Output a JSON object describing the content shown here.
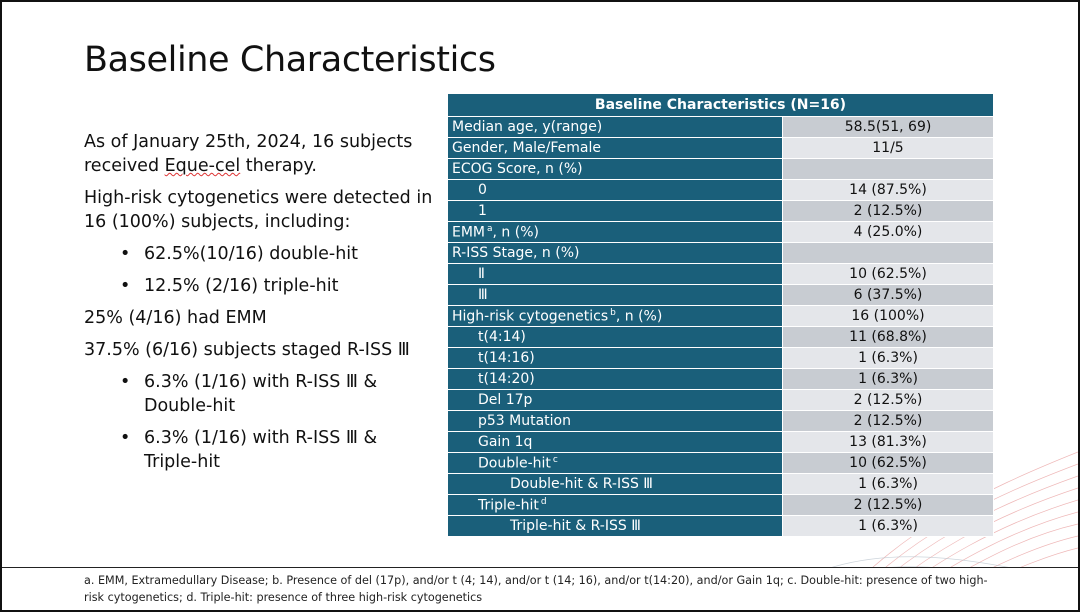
{
  "title": "Baseline Characteristics",
  "left": {
    "p1_before": "As of January 25th, 2024, 16 subjects received ",
    "p1_link": "Eque-cel",
    "p1_after": " therapy.",
    "p2": "High-risk cytogenetics were detected in 16 (100%) subjects, including:",
    "b1": "62.5%(10/16) double-hit",
    "b2": "12.5% (2/16) triple-hit",
    "p3": "25% (4/16)  had EMM",
    "p4": "37.5% (6/16) subjects staged R-ISS Ⅲ",
    "b3": "6.3% (1/16) with R-ISS Ⅲ & Double-hit",
    "b4": "6.3% (1/16) with R-ISS Ⅲ & Triple-hit",
    "bullet_glyph": "•"
  },
  "table": {
    "header": "Baseline Characteristics (N=16)",
    "rows": [
      {
        "label": "Median age, y(range)",
        "value": "58.5(51, 69)"
      },
      {
        "label": "Gender, Male/Female",
        "value": "11/5"
      },
      {
        "label": "ECOG Score, n (%)",
        "value": ""
      },
      {
        "label": "0",
        "value": "14 (87.5%)"
      },
      {
        "label": "1",
        "value": "2 (12.5%)"
      },
      {
        "label": "EMM",
        "sup": "a",
        "label_rest": ", n (%)",
        "value": "4 (25.0%)"
      },
      {
        "label": "R-ISS Stage, n (%)",
        "value": ""
      },
      {
        "label": "Ⅱ",
        "value": "10 (62.5%)"
      },
      {
        "label": "Ⅲ",
        "value": "6 (37.5%)"
      },
      {
        "label": "High-risk cytogenetics",
        "sup": "b",
        "label_rest": ", n (%)",
        "value": "16 (100%)"
      },
      {
        "label": "t(4:14)",
        "value": "11 (68.8%)"
      },
      {
        "label": "t(14:16)",
        "value": "1 (6.3%)"
      },
      {
        "label": "t(14:20)",
        "value": "1 (6.3%)"
      },
      {
        "label": "Del 17p",
        "value": "2 (12.5%)"
      },
      {
        "label": "p53 Mutation",
        "value": "2 (12.5%)"
      },
      {
        "label": "Gain 1q",
        "value": "13 (81.3%)"
      },
      {
        "label": "Double-hit",
        "sup": "c",
        "value": "10 (62.5%)"
      },
      {
        "label": "Double-hit & R-ISS Ⅲ",
        "value": "1 (6.3%)"
      },
      {
        "label": "Triple-hit",
        "sup": "d",
        "value": "2 (12.5%)"
      },
      {
        "label": "Triple-hit & R-ISS Ⅲ",
        "value": "1 (6.3%)"
      }
    ]
  },
  "footnote": "a. EMM, Extramedullary Disease; b. Presence of del (17p), and/or t (4; 14), and/or t (14; 16), and/or t(14:20), and/or Gain 1q; c. Double-hit: presence of two high-risk cytogenetics; d. Triple-hit: presence of three high-risk cytogenetics",
  "colors": {
    "header_bg": "#1a5f7a",
    "cell_light": "#e4e6ea",
    "cell_dark": "#c8ccd2",
    "accent_red": "#d33"
  }
}
